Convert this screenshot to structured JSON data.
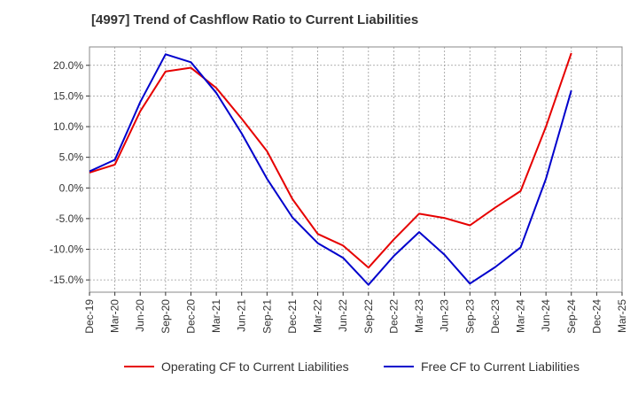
{
  "chart_data": {
    "type": "line",
    "title": "[4997]  Trend of Cashflow Ratio to Current Liabilities",
    "xlabel": "",
    "ylabel": "",
    "categories": [
      "Dec-19",
      "Mar-20",
      "Jun-20",
      "Sep-20",
      "Dec-20",
      "Mar-21",
      "Jun-21",
      "Sep-21",
      "Dec-21",
      "Mar-22",
      "Jun-22",
      "Sep-22",
      "Dec-22",
      "Mar-23",
      "Jun-23",
      "Sep-23",
      "Dec-23",
      "Mar-24",
      "Jun-24",
      "Sep-24",
      "Dec-24",
      "Mar-25"
    ],
    "yticks": [
      "20.0%",
      "15.0%",
      "10.0%",
      "5.0%",
      "0.0%",
      "-5.0%",
      "-10.0%",
      "-15.0%"
    ],
    "ylim": [
      -17,
      23
    ],
    "grid": true,
    "legend_position": "bottom",
    "series": [
      {
        "name": "Operating CF to Current Liabilities",
        "color": "#e60000",
        "values": [
          2.5,
          3.8,
          12.5,
          19.0,
          19.6,
          16.3,
          11.3,
          6.0,
          -1.8,
          -7.5,
          -9.4,
          -13.0,
          -8.4,
          -4.2,
          -4.9,
          -6.1,
          -3.2,
          -0.5,
          10.0,
          22.0,
          null,
          null
        ]
      },
      {
        "name": "Free CF to Current Liabilities",
        "color": "#0000cc",
        "values": [
          2.7,
          4.6,
          14.0,
          21.8,
          20.5,
          15.5,
          8.9,
          1.5,
          -4.8,
          -9.0,
          -11.4,
          -15.8,
          -11.1,
          -7.2,
          -10.9,
          -15.6,
          -12.9,
          -9.7,
          1.5,
          15.9,
          null,
          null
        ]
      }
    ]
  }
}
